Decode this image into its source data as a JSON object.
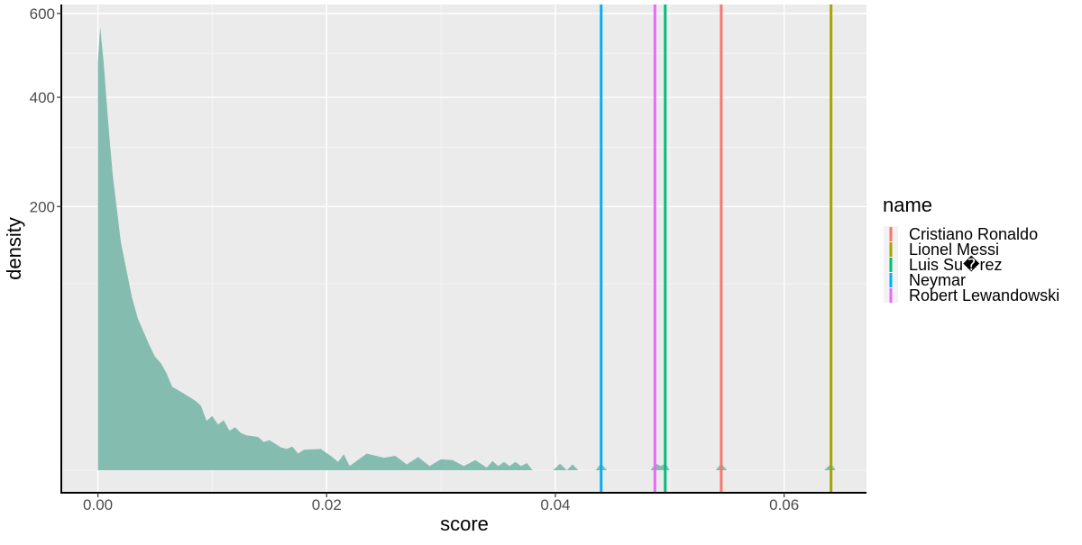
{
  "chart_data": {
    "type": "area",
    "xlabel": "score",
    "ylabel": "density",
    "xlim": [
      -0.0032,
      0.0672
    ],
    "ylim": [
      -40,
      620
    ],
    "y_scale": "sqrt",
    "grid": true,
    "x_ticks": [
      {
        "value": 0.0,
        "label": "0.00"
      },
      {
        "value": 0.02,
        "label": "0.02"
      },
      {
        "value": 0.04,
        "label": "0.04"
      },
      {
        "value": 0.06,
        "label": "0.06"
      }
    ],
    "y_ticks": [
      {
        "value": 200,
        "label": "200"
      },
      {
        "value": 400,
        "label": "400"
      },
      {
        "value": 600,
        "label": "600"
      }
    ],
    "fill_color": "#84bdb0",
    "panel_color": "#ebebeb",
    "density_curve": [
      [
        0.0,
        0
      ],
      [
        0.0,
        480
      ],
      [
        0.0002,
        565
      ],
      [
        0.0005,
        480
      ],
      [
        0.0008,
        380
      ],
      [
        0.001,
        320
      ],
      [
        0.0013,
        250
      ],
      [
        0.0017,
        190
      ],
      [
        0.002,
        150
      ],
      [
        0.0025,
        115
      ],
      [
        0.003,
        85
      ],
      [
        0.0035,
        66
      ],
      [
        0.004,
        55
      ],
      [
        0.0045,
        45
      ],
      [
        0.005,
        37
      ],
      [
        0.0055,
        33
      ],
      [
        0.006,
        27
      ],
      [
        0.0065,
        20
      ],
      [
        0.0075,
        17
      ],
      [
        0.0085,
        14
      ],
      [
        0.009,
        12
      ],
      [
        0.0095,
        7
      ],
      [
        0.01,
        8.5
      ],
      [
        0.0105,
        6
      ],
      [
        0.011,
        7.2
      ],
      [
        0.0115,
        4.5
      ],
      [
        0.012,
        5.3
      ],
      [
        0.0125,
        4
      ],
      [
        0.013,
        3.5
      ],
      [
        0.014,
        3.2
      ],
      [
        0.0145,
        2.3
      ],
      [
        0.015,
        2.6
      ],
      [
        0.016,
        1.5
      ],
      [
        0.0165,
        1.3
      ],
      [
        0.017,
        1.6
      ],
      [
        0.0175,
        0.8
      ],
      [
        0.018,
        1.2
      ],
      [
        0.0195,
        1.3
      ],
      [
        0.0205,
        0.5
      ],
      [
        0.021,
        0.2
      ],
      [
        0.0215,
        0.75
      ],
      [
        0.022,
        0.05
      ],
      [
        0.0235,
        0.8
      ],
      [
        0.025,
        0.45
      ],
      [
        0.026,
        0.6
      ],
      [
        0.027,
        0.1
      ],
      [
        0.028,
        0.5
      ],
      [
        0.029,
        0.05
      ],
      [
        0.03,
        0.35
      ],
      [
        0.031,
        0.3
      ],
      [
        0.032,
        0.05
      ],
      [
        0.033,
        0.3
      ],
      [
        0.034,
        0.02
      ],
      [
        0.0345,
        0.25
      ],
      [
        0.035,
        0.05
      ],
      [
        0.0355,
        0.2
      ],
      [
        0.036,
        0.05
      ],
      [
        0.0365,
        0.2
      ],
      [
        0.037,
        0.05
      ],
      [
        0.0375,
        0.15
      ],
      [
        0.038,
        0.0
      ],
      [
        0.0398,
        0.0
      ],
      [
        0.0404,
        0.12
      ],
      [
        0.041,
        0.0
      ],
      [
        0.0415,
        0.1
      ],
      [
        0.042,
        0.0
      ],
      [
        0.0435,
        0.0
      ],
      [
        0.044,
        0.13
      ],
      [
        0.0445,
        0.0
      ],
      [
        0.0483,
        0.0
      ],
      [
        0.0488,
        0.12
      ],
      [
        0.0492,
        0.05
      ],
      [
        0.0496,
        0.13
      ],
      [
        0.05,
        0.0
      ],
      [
        0.054,
        0.0
      ],
      [
        0.0545,
        0.13
      ],
      [
        0.055,
        0.0
      ],
      [
        0.0635,
        0.0
      ],
      [
        0.0641,
        0.12
      ],
      [
        0.0645,
        0.0
      ]
    ],
    "vlines": [
      {
        "name": "Cristiano Ronaldo",
        "x": 0.0545,
        "color": "#f8766d"
      },
      {
        "name": "Lionel Messi",
        "x": 0.0641,
        "color": "#a3a500"
      },
      {
        "name": "Luis Su�rez",
        "x": 0.0496,
        "color": "#00bf7d"
      },
      {
        "name": "Neymar",
        "x": 0.044,
        "color": "#00b0f6"
      },
      {
        "name": "Robert Lewandowski",
        "x": 0.0487,
        "color": "#e76bf3"
      }
    ],
    "legend": {
      "title": "name",
      "position": "right"
    }
  }
}
